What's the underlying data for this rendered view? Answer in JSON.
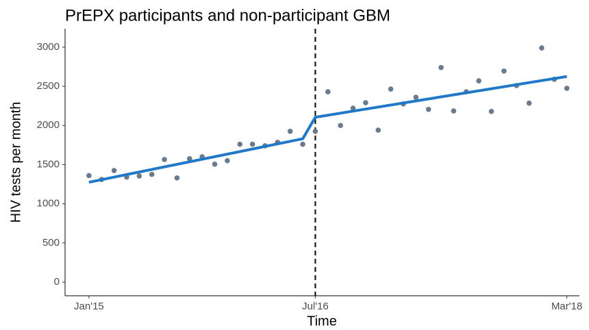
{
  "chart_data": {
    "type": "scatter",
    "title": "PrEPX participants and non-participant GBM",
    "x_label": "Time",
    "y_label": "HIV tests per month",
    "series": [
      {
        "color": "#6b7b8c",
        "x": [
          0,
          1,
          2,
          3,
          4,
          5,
          6,
          7,
          8,
          9,
          10,
          11,
          12,
          13,
          14,
          15,
          16,
          17,
          18,
          19,
          20,
          21,
          22,
          23,
          24,
          25,
          26,
          27,
          28,
          29,
          30,
          31,
          32,
          33,
          34,
          35,
          36,
          37,
          38
        ],
        "values": [
          1360,
          1310,
          1425,
          1340,
          1355,
          1375,
          1565,
          1330,
          1575,
          1600,
          1505,
          1550,
          1760,
          1760,
          1740,
          1785,
          1925,
          1760,
          1925,
          2430,
          2000,
          2220,
          2290,
          1940,
          2465,
          2275,
          2360,
          2205,
          2740,
          2185,
          2430,
          2570,
          2180,
          2695,
          2510,
          2285,
          2990,
          2590,
          2475
        ]
      },
      {
        "color": "#1f78c8",
        "x": [
          0,
          17,
          18,
          38
        ],
        "values": [
          1275,
          1830,
          2105,
          2625
        ]
      }
    ],
    "vline": 18,
    "xlim": [
      -1.9,
      39.0
    ],
    "xticks": [
      {
        "value": 0,
        "label": "Jan'15"
      },
      {
        "value": 18,
        "label": "Jul'16"
      },
      {
        "value": 38,
        "label": "Mar'18"
      }
    ],
    "ylim": [
      -175,
      3235
    ],
    "yticks": [
      0,
      500,
      1000,
      1500,
      2000,
      2500,
      3000
    ]
  }
}
